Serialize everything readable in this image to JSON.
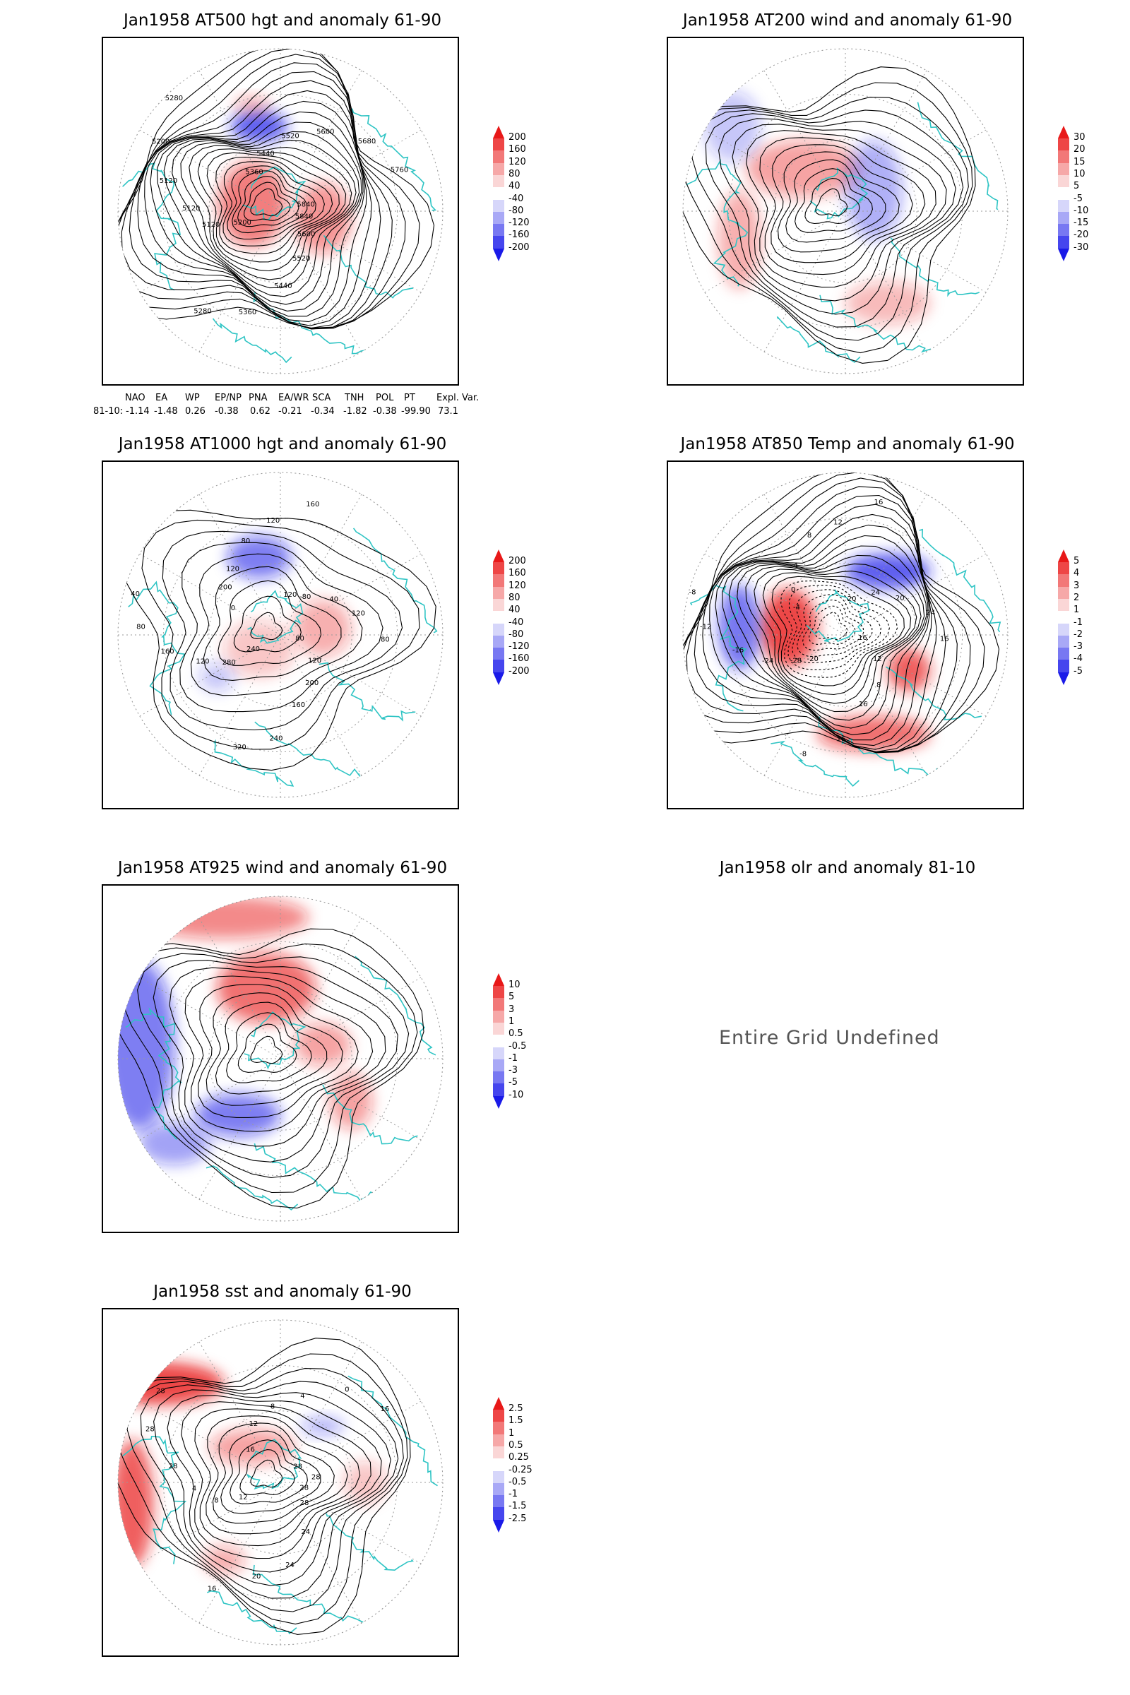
{
  "panels": [
    {
      "id": "p1",
      "title": "Jan1958 AT500 hgt and anomaly 61-90",
      "colorbar": [
        "200",
        "160",
        "120",
        "80",
        "40",
        "-40",
        "-80",
        "-120",
        "-160",
        "-200"
      ],
      "contour_labels": [
        "5840",
        "5600",
        "5520",
        "5440",
        "5360",
        "5280",
        "5200",
        "5120",
        "5120",
        "5120",
        "5200",
        "5280",
        "5360",
        "5440",
        "5520",
        "5600",
        "5680",
        "5760",
        "5840"
      ]
    },
    {
      "id": "p2",
      "title": "Jan1958 AT200 wind and anomaly 61-90",
      "colorbar": [
        "30",
        "20",
        "15",
        "10",
        "5",
        "-5",
        "-10",
        "-15",
        "-20",
        "-30"
      ]
    },
    {
      "id": "p3",
      "title": "Jan1958 AT1000 hgt and anomaly 61-90",
      "colorbar": [
        "200",
        "160",
        "120",
        "80",
        "40",
        "-40",
        "-80",
        "-120",
        "-160",
        "-200"
      ],
      "contour_labels": [
        "80",
        "120",
        "200",
        "160",
        "240",
        "320",
        "240",
        "280",
        "120",
        "160",
        "80",
        "40",
        "0",
        "200",
        "120",
        "80",
        "120",
        "160",
        "120",
        "-80",
        "-40",
        "120",
        "80"
      ]
    },
    {
      "id": "p4",
      "title": "Jan1958 AT850 Temp and anomaly 61-90",
      "colorbar": [
        "5",
        "4",
        "3",
        "2",
        "1",
        "-1",
        "-2",
        "-3",
        "-4",
        "-5"
      ],
      "contour_labels": [
        "16",
        "12",
        "8",
        "16",
        "16",
        "-8",
        "-20",
        "-28",
        "-24",
        "-16",
        "-12",
        "-8",
        "-4",
        "0",
        "4",
        "8",
        "12",
        "16",
        "20",
        "24",
        "20",
        "24",
        "16"
      ]
    },
    {
      "id": "p5",
      "title": "Jan1958 AT925 wind and anomaly 61-90",
      "colorbar": [
        "10",
        "5",
        "3",
        "1",
        "0.5",
        "-0.5",
        "-1",
        "-3",
        "-5",
        "-10"
      ]
    },
    {
      "id": "p6",
      "title": "Jan1958 olr and anomaly 81-10",
      "message": "Entire Grid Undefined"
    },
    {
      "id": "p7",
      "title": "Jan1958 sst and anomaly 61-90",
      "colorbar": [
        "2.5",
        "1.5",
        "1",
        "0.5",
        "0.25",
        "-0.25",
        "-0.5",
        "-1",
        "-1.5",
        "-2.5"
      ],
      "contour_labels": [
        "28",
        "28",
        "24",
        "24",
        "20",
        "16",
        "12",
        "8",
        "4",
        "28",
        "28",
        "28",
        "16",
        "12",
        "8",
        "4",
        "0",
        "16",
        "28",
        "28"
      ]
    }
  ],
  "teleconnection": {
    "headers": [
      "NAO",
      "EA",
      "WP",
      "EP/NP",
      "PNA",
      "EA/WR",
      "SCA",
      "TNH",
      "POL",
      "PT",
      "Expl. Var."
    ],
    "row_label": "81-10:",
    "values": [
      "-1.14",
      "-1.48",
      "0.26",
      "-0.38",
      "0.62",
      "-0.21",
      "-0.34",
      "-1.82",
      "-0.38",
      "-99.90",
      "73.1"
    ]
  },
  "colors": {
    "coast": "#2ec4c4",
    "pos": "#e81818",
    "neg": "#1a1ae8",
    "contour": "#000000"
  }
}
